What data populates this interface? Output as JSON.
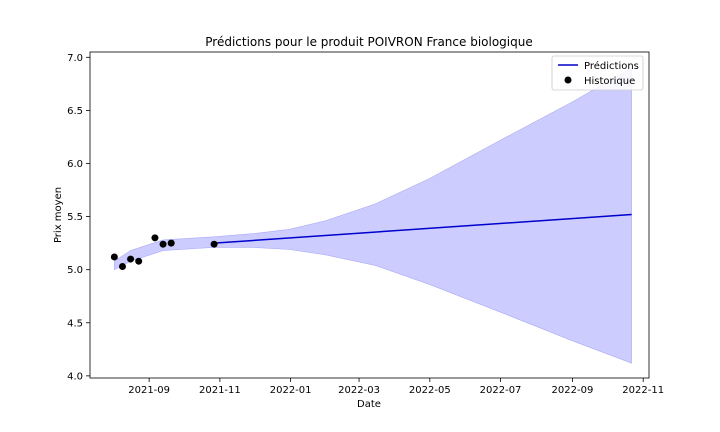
{
  "chart_data": {
    "type": "line",
    "title": "Prédictions pour le produit POIVRON France biologique",
    "xlabel": "Date",
    "ylabel": "Prix moyen",
    "xlim": [
      "2021-07-12",
      "2022-11-06"
    ],
    "ylim": [
      3.98,
      7.05
    ],
    "x_ticks": [
      "2021-09",
      "2021-11",
      "2022-01",
      "2022-03",
      "2022-05",
      "2022-07",
      "2022-09",
      "2022-11"
    ],
    "y_ticks": [
      "4.0",
      "4.5",
      "5.0",
      "5.5",
      "6.0",
      "6.5",
      "7.0"
    ],
    "legend_position": "top-right",
    "grid": false,
    "colors": {
      "prediction_line": "#0000cc",
      "confidence_band": "#ccccff",
      "history_points": "#000000"
    },
    "series": [
      {
        "name": "Prédictions",
        "kind": "line",
        "x": [
          "2021-10-27",
          "2022-10-22"
        ],
        "y": [
          5.25,
          5.52
        ]
      },
      {
        "name": "Historique",
        "kind": "scatter",
        "x": [
          "2021-08-02",
          "2021-08-09",
          "2021-08-16",
          "2021-08-23",
          "2021-09-06",
          "2021-09-13",
          "2021-09-20",
          "2021-10-27"
        ],
        "y": [
          5.12,
          5.03,
          5.1,
          5.08,
          5.3,
          5.24,
          5.25,
          5.24
        ]
      }
    ],
    "confidence_band": {
      "x": [
        "2021-08-02",
        "2021-08-16",
        "2021-09-13",
        "2021-10-27",
        "2021-11-30",
        "2021-12-31",
        "2022-01-31",
        "2022-03-15",
        "2022-05-01",
        "2022-07-01",
        "2022-09-01",
        "2022-10-22"
      ],
      "lower": [
        5.0,
        5.08,
        5.18,
        5.21,
        5.21,
        5.19,
        5.14,
        5.04,
        4.86,
        4.6,
        4.33,
        4.12
      ],
      "upper": [
        5.08,
        5.18,
        5.28,
        5.31,
        5.34,
        5.38,
        5.46,
        5.62,
        5.86,
        6.22,
        6.58,
        6.9
      ]
    }
  }
}
